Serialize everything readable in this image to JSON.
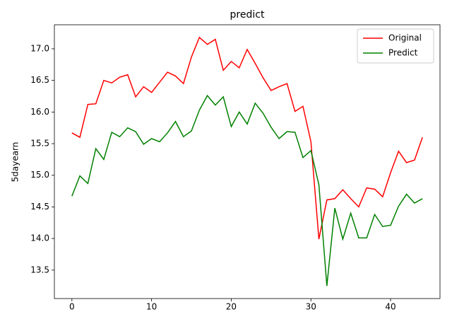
{
  "chart_data": {
    "type": "line",
    "title": "predict",
    "y_label": "5dayearn",
    "x": [
      0,
      1,
      2,
      3,
      4,
      5,
      6,
      7,
      8,
      9,
      10,
      11,
      12,
      13,
      14,
      15,
      16,
      17,
      18,
      19,
      20,
      21,
      22,
      23,
      24,
      25,
      26,
      27,
      28,
      29,
      30,
      31,
      32,
      33,
      34,
      35,
      36,
      37,
      38,
      39,
      40,
      41,
      42,
      43,
      44
    ],
    "series": [
      {
        "name": "Original",
        "color": "#ff0000",
        "values": [
          15.67,
          15.6,
          16.12,
          16.13,
          16.5,
          16.46,
          16.55,
          16.59,
          16.24,
          16.4,
          16.31,
          16.47,
          16.63,
          16.57,
          16.45,
          16.87,
          17.18,
          17.07,
          17.15,
          16.66,
          16.8,
          16.7,
          16.99,
          16.77,
          16.54,
          16.34,
          16.4,
          16.45,
          16.01,
          16.09,
          15.53,
          13.99,
          14.61,
          14.63,
          14.77,
          14.63,
          14.5,
          14.8,
          14.78,
          14.66,
          15.04,
          15.38,
          15.2,
          15.24,
          15.6
        ]
      },
      {
        "name": "Predict",
        "color": "#008000",
        "values": [
          14.67,
          14.99,
          14.87,
          15.42,
          15.25,
          15.68,
          15.61,
          15.75,
          15.69,
          15.49,
          15.58,
          15.53,
          15.67,
          15.85,
          15.61,
          15.7,
          16.03,
          16.26,
          16.11,
          16.24,
          15.77,
          16.0,
          15.81,
          16.14,
          15.98,
          15.76,
          15.58,
          15.69,
          15.68,
          15.28,
          15.39,
          14.85,
          13.25,
          14.48,
          13.99,
          14.4,
          14.01,
          14.01,
          14.38,
          14.19,
          14.21,
          14.51,
          14.7,
          14.56,
          14.63
        ]
      }
    ],
    "xlim": [
      -2.2,
      46.2
    ],
    "xticks": [
      0,
      10,
      20,
      30,
      40
    ],
    "ylim": [
      13.05,
      17.38
    ],
    "yticks": [
      13.5,
      {
        "value": 14.0,
        "label": "14.0"
      },
      14.5,
      {
        "value": 15.0,
        "label": "15.0"
      },
      15.5,
      {
        "value": 16.0,
        "label": "16.0"
      },
      16.5,
      {
        "value": 17.0,
        "label": "17.0"
      }
    ],
    "legend": "upper right"
  }
}
